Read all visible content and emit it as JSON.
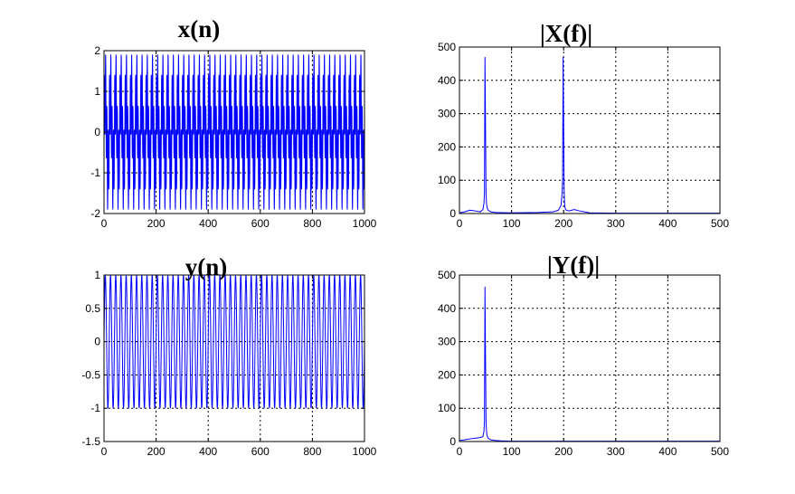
{
  "chart_data": [
    {
      "id": "xn",
      "type": "line",
      "title": "x(n)",
      "xlabel": "",
      "ylabel": "",
      "xlim": [
        0,
        1000
      ],
      "ylim": [
        -2,
        2
      ],
      "xticks": [
        0,
        200,
        400,
        600,
        800,
        1000
      ],
      "yticks": [
        -2,
        -1,
        0,
        1,
        2
      ],
      "xtick_labels": [
        "0",
        "200",
        "400",
        "600",
        "800",
        "1000"
      ],
      "ytick_labels": [
        "-2",
        "-1",
        "0",
        "1",
        "2"
      ],
      "grid": true,
      "color": "#0000ff",
      "series": [
        {
          "signal": "sin(2*pi*50*n/1000) + sin(2*pi*200*n/1000)",
          "n_start": 0,
          "n_end": 1000,
          "peak": 1.9
        }
      ]
    },
    {
      "id": "Xf",
      "type": "line",
      "title": "|X(f)|",
      "xlabel": "",
      "ylabel": "",
      "xlim": [
        0,
        500
      ],
      "ylim": [
        0,
        500
      ],
      "xticks": [
        0,
        100,
        200,
        300,
        400,
        500
      ],
      "yticks": [
        0,
        100,
        200,
        300,
        400,
        500
      ],
      "xtick_labels": [
        "0",
        "100",
        "200",
        "300",
        "400",
        "500"
      ],
      "ytick_labels": [
        "0",
        "100",
        "200",
        "300",
        "400",
        "500"
      ],
      "grid": true,
      "color": "#0000ff",
      "series": [
        {
          "x": [
            0,
            10,
            20,
            30,
            40,
            45,
            47,
            48,
            49,
            50,
            51,
            52,
            53,
            55,
            60,
            70,
            100,
            150,
            180,
            190,
            195,
            197,
            198,
            199,
            200,
            201,
            202,
            203,
            205,
            210,
            220,
            230,
            250,
            300,
            400,
            500
          ],
          "y": [
            2,
            5,
            10,
            8,
            5,
            12,
            30,
            60,
            470,
            270,
            60,
            30,
            18,
            10,
            5,
            3,
            2,
            3,
            5,
            10,
            25,
            60,
            100,
            470,
            270,
            60,
            25,
            15,
            10,
            8,
            12,
            8,
            2,
            1,
            1,
            1
          ]
        }
      ]
    },
    {
      "id": "yn",
      "type": "line",
      "title": "y(n)",
      "xlabel": "",
      "ylabel": "",
      "xlim": [
        0,
        1000
      ],
      "ylim": [
        -1.5,
        1
      ],
      "xticks": [
        0,
        200,
        400,
        600,
        800,
        1000
      ],
      "yticks": [
        -1.5,
        -1,
        -0.5,
        0,
        0.5,
        1
      ],
      "xtick_labels": [
        "0",
        "200",
        "400",
        "600",
        "800",
        "1000"
      ],
      "ytick_labels": [
        "-1.5",
        "-1",
        "-0.5",
        "0",
        "0.5",
        "1"
      ],
      "grid": true,
      "color": "#0000ff",
      "series": [
        {
          "signal": "sin(2*pi*50*n/1000)",
          "n_start": 0,
          "n_end": 1000,
          "peak": 1.0
        }
      ]
    },
    {
      "id": "Yf",
      "type": "line",
      "title": "|Y(f)|",
      "xlabel": "",
      "ylabel": "",
      "xlim": [
        0,
        500
      ],
      "ylim": [
        0,
        500
      ],
      "xticks": [
        0,
        100,
        200,
        300,
        400,
        500
      ],
      "yticks": [
        0,
        100,
        200,
        300,
        400,
        500
      ],
      "xtick_labels": [
        "0",
        "100",
        "200",
        "300",
        "400",
        "500"
      ],
      "ytick_labels": [
        "0",
        "100",
        "200",
        "300",
        "400",
        "500"
      ],
      "grid": true,
      "color": "#0000ff",
      "series": [
        {
          "x": [
            0,
            10,
            20,
            30,
            40,
            45,
            47,
            48,
            49,
            50,
            51,
            52,
            53,
            55,
            60,
            70,
            80,
            100,
            150,
            200,
            300,
            400,
            500
          ],
          "y": [
            3,
            5,
            8,
            10,
            12,
            15,
            30,
            60,
            465,
            265,
            60,
            30,
            18,
            10,
            5,
            3,
            2,
            1,
            1,
            1,
            1,
            1,
            1
          ]
        }
      ]
    }
  ]
}
